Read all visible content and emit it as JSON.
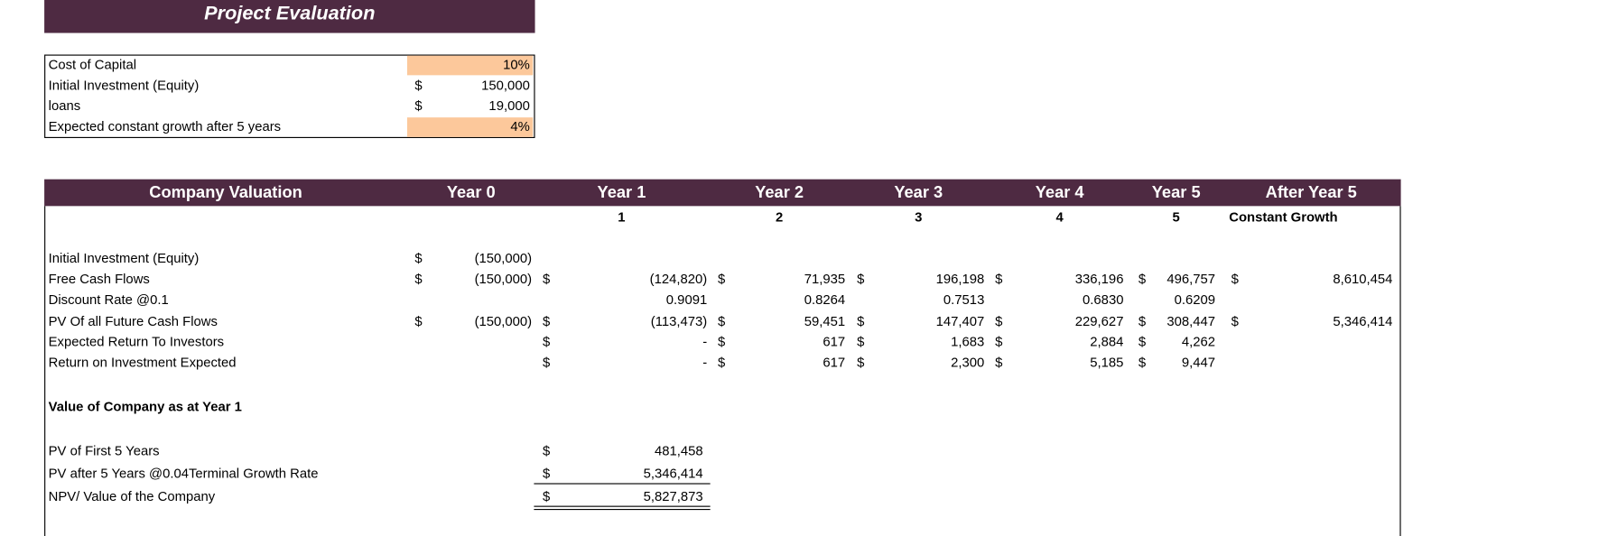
{
  "header": {
    "title": "Project Evaluation"
  },
  "inputs": {
    "rows": [
      [
        "Cost of Capital",
        null,
        "10%"
      ],
      [
        "Initial Investment (Equity)",
        "$",
        "150,000"
      ],
      [
        "loans",
        "$",
        "19,000"
      ],
      [
        "Expected constant growth after 5 years",
        null,
        "4%"
      ]
    ]
  },
  "valuation": {
    "headers": [
      "Company Valuation",
      "Year 0",
      "Year 1",
      "Year 2",
      "Year 3",
      "Year 4",
      "Year 5",
      "After Year 5"
    ],
    "periods": [
      "1",
      "2",
      "3",
      "4",
      "5",
      "Constant Growth"
    ],
    "rows": [
      [
        "Initial Investment (Equity)",
        "$",
        "(150,000)",
        null,
        null,
        null,
        null,
        null,
        null,
        null,
        null,
        null,
        null,
        null,
        null
      ],
      [
        "Free Cash Flows",
        "$",
        "(150,000)",
        "$",
        "(124,820)",
        "$",
        "71,935",
        "$",
        "196,198",
        "$",
        "336,196",
        "$",
        "496,757",
        "$",
        "8,610,454"
      ],
      [
        "Discount Rate @0.1",
        null,
        null,
        null,
        "0.9091",
        null,
        "0.8264",
        null,
        "0.7513",
        null,
        "0.6830",
        null,
        "0.6209",
        null,
        null
      ],
      [
        "PV Of all Future Cash Flows",
        "$",
        "(150,000)",
        "$",
        "(113,473)",
        "$",
        "59,451",
        "$",
        "147,407",
        "$",
        "229,627",
        "$",
        "308,447",
        "$",
        "5,346,414"
      ],
      [
        "Expected Return To Investors",
        null,
        null,
        "$",
        "-",
        "$",
        "617",
        "$",
        "1,683",
        "$",
        "2,884",
        "$",
        "4,262",
        null,
        null
      ],
      [
        "Return on Investment Expected",
        null,
        null,
        "$",
        "-",
        "$",
        "617",
        "$",
        "2,300",
        "$",
        "5,185",
        "$",
        "9,447",
        null,
        null
      ]
    ],
    "section": "Value of Company as at Year 1",
    "summary": [
      [
        "PV of First 5 Years",
        "$",
        "481,458"
      ],
      [
        "PV after 5 Years @0.04Terminal Growth Rate",
        "$",
        "5,346,414"
      ],
      [
        "NPV/ Value of the Company",
        "$",
        "5,827,873"
      ]
    ]
  }
}
